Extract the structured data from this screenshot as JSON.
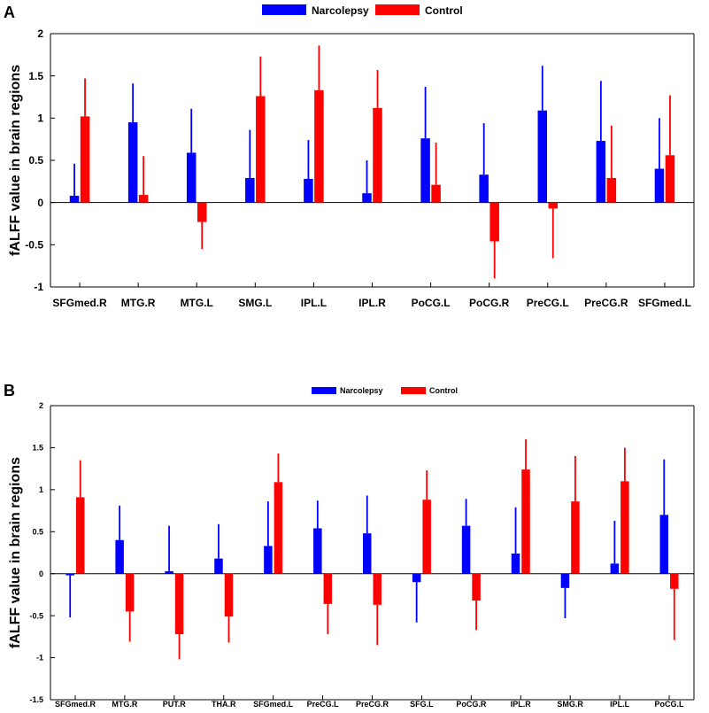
{
  "chart_data": [
    {
      "type": "bar",
      "panel_label": "A",
      "title": "",
      "xlabel": "",
      "ylabel": "fALFF value in brain regions",
      "ylim": [
        -1,
        2
      ],
      "yticks": [
        -1,
        -0.5,
        0,
        0.5,
        1,
        1.5,
        2
      ],
      "ytick_labels": [
        "-1",
        "-0.5",
        "0",
        "0.5",
        "1",
        "1.5",
        "2"
      ],
      "grid": false,
      "legend_position": "top-center",
      "categories": [
        "SFGmed.R",
        "MTG.R",
        "MTG.L",
        "SMG.L",
        "IPL.L",
        "IPL.R",
        "PoCG.L",
        "PoCG.R",
        "PreCG.L",
        "PreCG.R",
        "SFGmed.L"
      ],
      "series": [
        {
          "name": "Narcolepsy",
          "color": "#0000ff",
          "values": [
            0.08,
            0.95,
            0.59,
            0.29,
            0.28,
            0.11,
            0.76,
            0.33,
            1.09,
            0.73,
            0.4
          ],
          "error_ends": [
            0.46,
            1.41,
            1.11,
            0.86,
            0.74,
            0.5,
            1.37,
            0.94,
            1.62,
            1.44,
            1.0
          ]
        },
        {
          "name": "Control",
          "color": "#ff0000",
          "values": [
            1.02,
            0.09,
            -0.23,
            1.26,
            1.33,
            1.12,
            0.21,
            -0.46,
            -0.07,
            0.29,
            0.56
          ],
          "error_ends": [
            1.47,
            0.55,
            -0.55,
            1.73,
            1.86,
            1.57,
            0.71,
            -0.9,
            -0.66,
            0.91,
            1.27
          ]
        }
      ]
    },
    {
      "type": "bar",
      "panel_label": "B",
      "title": "",
      "xlabel": "",
      "ylabel": "fALFF value in brain regions",
      "ylim": [
        -1.5,
        2
      ],
      "yticks": [
        -1.5,
        -1,
        -0.5,
        0,
        0.5,
        1,
        1.5,
        2
      ],
      "ytick_labels": [
        "-1.5",
        "-1",
        "-0.5",
        "0",
        "0.5",
        "1",
        "1.5",
        "2"
      ],
      "grid": false,
      "legend_position": "top-center",
      "categories": [
        "SFGmed.R",
        "MTG.R",
        "PUT.R",
        "THA.R",
        "SFGmed.L",
        "PreCG.L",
        "PreCG.R",
        "SFG.L",
        "PoCG.R",
        "IPL.R",
        "SMG.R",
        "IPL.L",
        "PoCG.L"
      ],
      "series": [
        {
          "name": "Narcolepsy",
          "color": "#0000ff",
          "values": [
            -0.02,
            0.4,
            0.03,
            0.18,
            0.33,
            0.54,
            0.48,
            -0.1,
            0.57,
            0.24,
            -0.17,
            0.12,
            0.7
          ],
          "error_ends": [
            -0.52,
            0.81,
            0.57,
            0.59,
            0.86,
            0.87,
            0.93,
            -0.58,
            0.89,
            0.79,
            -0.53,
            0.63,
            1.36
          ]
        },
        {
          "name": "Control",
          "color": "#ff0000",
          "values": [
            0.91,
            -0.45,
            -0.72,
            -0.51,
            1.09,
            -0.36,
            -0.37,
            0.88,
            -0.32,
            1.24,
            0.86,
            1.1,
            -0.18
          ],
          "error_ends": [
            1.35,
            -0.81,
            -1.02,
            -0.82,
            1.43,
            -0.72,
            -0.85,
            1.23,
            -0.67,
            1.6,
            1.4,
            1.5,
            -0.79
          ]
        }
      ]
    }
  ]
}
